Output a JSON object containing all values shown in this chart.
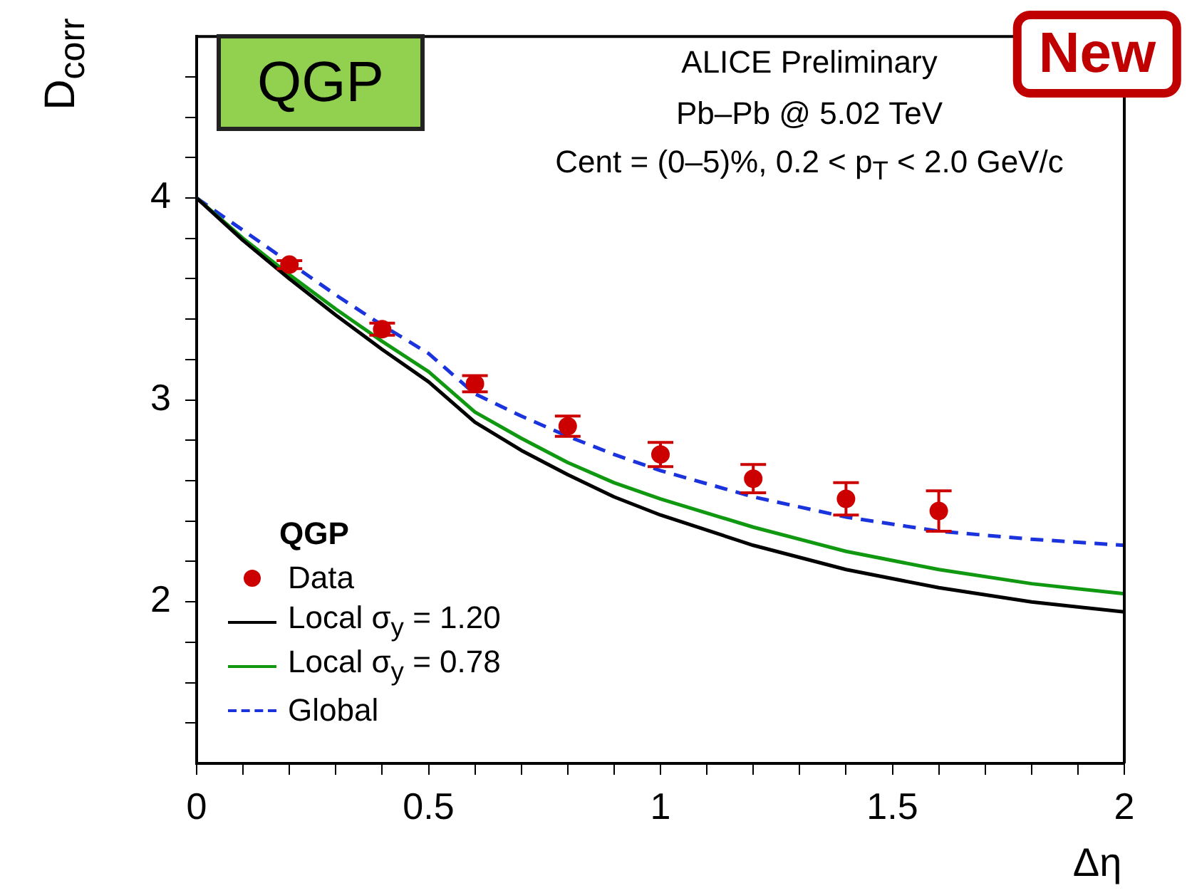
{
  "chart_data": {
    "type": "line",
    "ylabel": "D$_{corr}$",
    "xlabel": "Δη",
    "legend_title": "QGP",
    "legend": "bottom left",
    "grid": false,
    "annotations": [
      "ALICE Preliminary",
      "Pb–Pb @ 5.02 TeV",
      "Cent = (0–5)%, 0.2 < p$_{T}$ < 2.0 GeV/c",
      "QGP",
      "New"
    ],
    "xlim": [
      0,
      2
    ],
    "ylim": [
      1.2,
      4.8
    ],
    "xticks": [
      0,
      {
        "value": 0.1,
        "label": null
      },
      {
        "value": 0.2,
        "label": null
      },
      {
        "value": 0.3,
        "label": null
      },
      {
        "value": 0.4,
        "label": null
      },
      0.5,
      {
        "value": 0.6,
        "label": null
      },
      {
        "value": 0.7,
        "label": null
      },
      {
        "value": 0.8,
        "label": null
      },
      {
        "value": 0.9,
        "label": null
      },
      1,
      {
        "value": 1.1,
        "label": null
      },
      {
        "value": 1.2,
        "label": null
      },
      {
        "value": 1.3,
        "label": null
      },
      {
        "value": 1.4,
        "label": null
      },
      1.5,
      {
        "value": 1.6,
        "label": null
      },
      {
        "value": 1.7,
        "label": null
      },
      {
        "value": 1.8,
        "label": null
      },
      {
        "value": 1.9,
        "label": null
      },
      2
    ],
    "yticks": [
      {
        "value": 1.4,
        "label": null
      },
      {
        "value": 1.6,
        "label": null
      },
      {
        "value": 1.8,
        "label": null
      },
      2,
      {
        "value": 2.2,
        "label": null
      },
      {
        "value": 2.4,
        "label": null
      },
      {
        "value": 2.6,
        "label": null
      },
      {
        "value": 2.8,
        "label": null
      },
      3,
      {
        "value": 3.2,
        "label": null
      },
      {
        "value": 3.4,
        "label": null
      },
      {
        "value": 3.6,
        "label": null
      },
      {
        "value": 3.8,
        "label": null
      },
      4,
      {
        "value": 4.2,
        "label": null
      },
      {
        "value": 4.4,
        "label": null
      },
      {
        "value": 4.6,
        "label": null
      }
    ],
    "series": [
      {
        "name": "Data",
        "type": "scatter",
        "marker": "circle",
        "color": "#cc0000",
        "x": [
          0.2,
          0.4,
          0.6,
          0.8,
          1.0,
          1.2,
          1.4,
          1.6
        ],
        "values": [
          3.67,
          3.35,
          3.08,
          2.87,
          2.73,
          2.61,
          2.51,
          2.45
        ],
        "errors": [
          0.02,
          0.03,
          0.04,
          0.05,
          0.06,
          0.07,
          0.08,
          0.1
        ]
      },
      {
        "name": "Local σ$_{y}$ = 1.20",
        "type": "line",
        "marker": "none",
        "line_style": "solid",
        "color": "#000000",
        "x": [
          0,
          0.1,
          0.2,
          0.3,
          0.4,
          0.5,
          0.6,
          0.7,
          0.8,
          0.9,
          1.0,
          1.2,
          1.4,
          1.6,
          1.8,
          2.0
        ],
        "values": [
          4,
          3.79,
          3.6,
          3.42,
          3.25,
          3.09,
          2.89,
          2.75,
          2.63,
          2.52,
          2.43,
          2.28,
          2.16,
          2.07,
          2.0,
          1.95
        ]
      },
      {
        "name": "Local σ$_{y}$ = 0.78",
        "type": "line",
        "marker": "none",
        "line_style": "solid",
        "color": "#109910",
        "x": [
          0,
          0.1,
          0.2,
          0.3,
          0.4,
          0.5,
          0.6,
          0.7,
          0.8,
          0.9,
          1.0,
          1.2,
          1.4,
          1.6,
          1.8,
          2.0
        ],
        "values": [
          4,
          3.8,
          3.62,
          3.45,
          3.29,
          3.14,
          2.94,
          2.81,
          2.69,
          2.59,
          2.51,
          2.37,
          2.25,
          2.16,
          2.09,
          2.04
        ]
      },
      {
        "name": "Global",
        "type": "line",
        "marker": "none",
        "line_style": "dashed",
        "color": "#1a33dd",
        "x": [
          0,
          0.1,
          0.2,
          0.3,
          0.4,
          0.5,
          0.6,
          0.7,
          0.8,
          0.9,
          1.0,
          1.2,
          1.4,
          1.6,
          1.8,
          2.0
        ],
        "values": [
          4,
          3.84,
          3.68,
          3.52,
          3.37,
          3.23,
          3.03,
          2.92,
          2.82,
          2.73,
          2.65,
          2.52,
          2.42,
          2.35,
          2.31,
          2.28
        ]
      }
    ]
  }
}
